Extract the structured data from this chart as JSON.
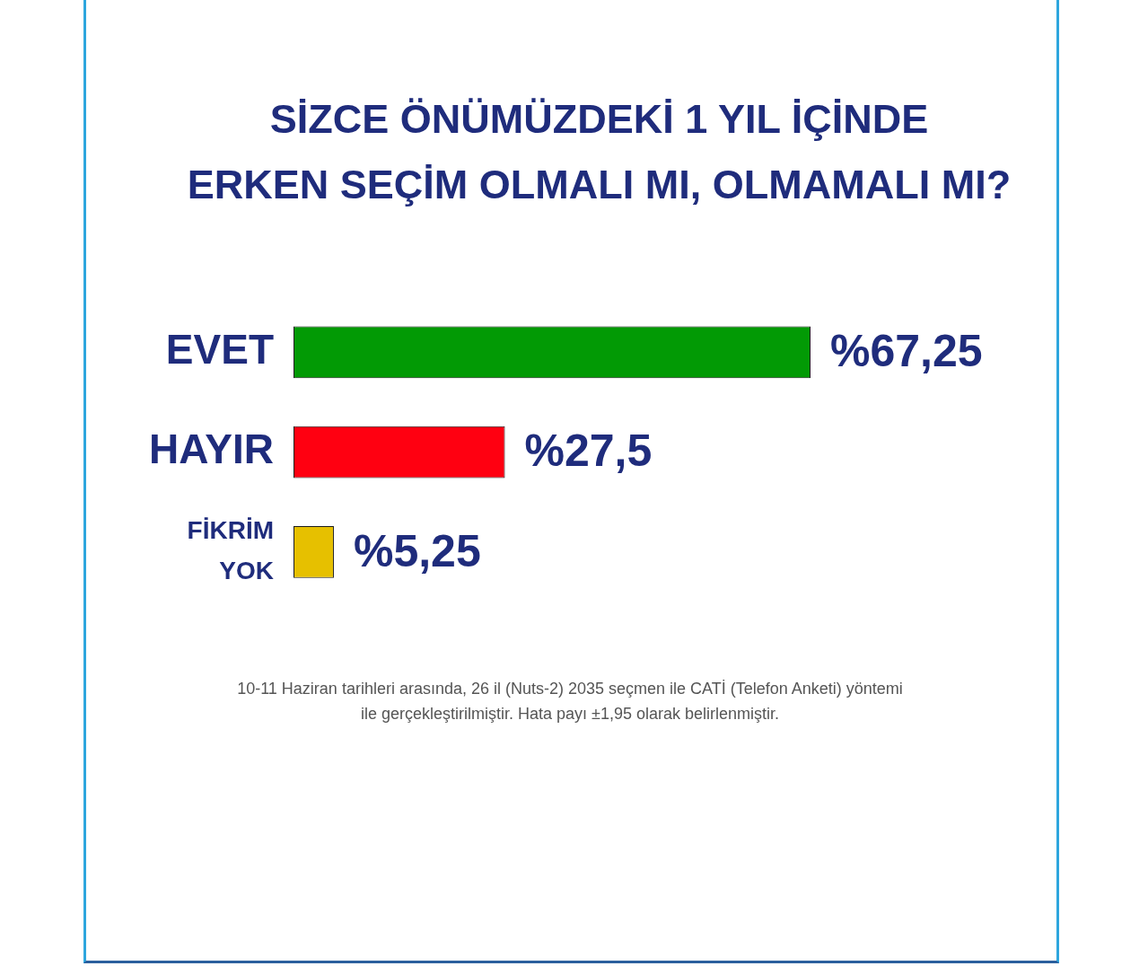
{
  "chart_data": {
    "type": "bar",
    "orientation": "horizontal",
    "title": "SİZCE ÖNÜMÜZDEKİ 1 YIL İÇİNDE\nERKEN SEÇİM OLMALI MI, OLMAMALI MI?",
    "categories": [
      "EVET",
      "HAYIR",
      "FİKRİM YOK"
    ],
    "values": [
      67.25,
      27.5,
      5.25
    ],
    "colors": [
      "#029a05",
      "#ff0011",
      "#e6c000"
    ],
    "value_labels": [
      "%67,25",
      "%27,5",
      "%5,25"
    ],
    "tick_labels": "y",
    "annotations": [
      "10-11 Haziran tarihleri arasında, 26 il (Nuts-2) 2035 seçmen ile CATİ (Telefon Anketi) yöntemi ile gerçekleştirilmiştir. Hata payı ±1,95 olarak belirlenmiştir."
    ]
  }
}
